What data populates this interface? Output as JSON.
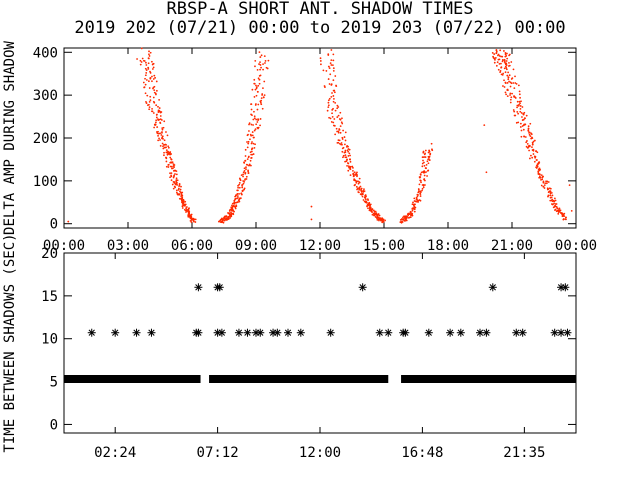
{
  "chart_data": [
    {
      "type": "scatter",
      "title": "RBSP-A SHORT ANT. SHADOW TIMES",
      "subtitle": "2019 202 (07/21) 00:00 to 2019 203 (07/22) 00:00",
      "ylabel": "DELTA AMP DURING SHADOW",
      "xlim": [
        0,
        24
      ],
      "ylim": [
        -10,
        410
      ],
      "x_ticks": [
        "00:00",
        "03:00",
        "06:00",
        "09:00",
        "12:00",
        "15:00",
        "18:00",
        "21:00",
        "00:00"
      ],
      "x_tick_hours": [
        0,
        3,
        6,
        9,
        12,
        15,
        18,
        21,
        24
      ],
      "y_ticks": [
        "0",
        "100",
        "200",
        "300",
        "400"
      ],
      "y_tick_values": [
        0,
        100,
        200,
        300,
        400
      ],
      "color": "#ff2a00",
      "series": [
        {
          "x": [
            3.8,
            4.0,
            4.3,
            4.6,
            4.9,
            5.2,
            5.5,
            5.8,
            6.1
          ],
          "y": [
            400,
            330,
            260,
            200,
            150,
            100,
            60,
            25,
            5
          ]
        },
        {
          "x": [
            7.3,
            7.7,
            8.0,
            8.3,
            8.6,
            8.9,
            9.1,
            9.3
          ],
          "y": [
            5,
            15,
            40,
            80,
            140,
            220,
            300,
            400
          ]
        },
        {
          "x": [
            12.3,
            12.6,
            13.0,
            13.4,
            13.8,
            14.2,
            14.6,
            15.0
          ],
          "y": [
            400,
            280,
            200,
            140,
            90,
            50,
            20,
            5
          ]
        },
        {
          "x": [
            15.8,
            16.2,
            16.6,
            16.9,
            17.1
          ],
          "y": [
            5,
            20,
            60,
            120,
            180
          ]
        },
        {
          "x": [
            20.3,
            20.6,
            20.9,
            21.3,
            21.7,
            22.1,
            22.6,
            23.0,
            23.5
          ],
          "y": [
            400,
            380,
            330,
            270,
            210,
            150,
            90,
            40,
            10
          ]
        },
        {
          "x": [
            0.2,
            11.6,
            11.6,
            19.7,
            19.8,
            23.7,
            23.8
          ],
          "y": [
            5,
            40,
            10,
            230,
            120,
            90,
            30
          ]
        }
      ]
    },
    {
      "type": "scatter",
      "ylabel": "TIME BETWEEN SHADOWS (SEC)",
      "xlim": [
        0,
        24
      ],
      "ylim": [
        -1,
        20
      ],
      "x_ticks": [
        "02:24",
        "07:12",
        "12:00",
        "16:48",
        "21:35"
      ],
      "x_tick_hours": [
        2.4,
        7.2,
        12.0,
        16.8,
        21.58
      ],
      "y_ticks": [
        "0",
        "5",
        "10",
        "15",
        "20"
      ],
      "y_tick_values": [
        0,
        5,
        10,
        15,
        20
      ],
      "color": "#000000",
      "series": [
        {
          "name": "",
          "x": [
            1.3,
            2.4,
            3.4,
            4.1,
            6.2,
            6.3,
            7.2,
            7.4,
            8.2,
            8.6,
            9.0,
            9.2,
            9.8,
            10.0,
            10.5,
            11.1,
            12.5,
            14.8,
            15.2,
            15.9,
            16.0,
            17.1,
            18.1,
            18.6,
            19.5,
            19.8,
            21.2,
            21.5,
            23.0,
            23.3,
            23.6
          ],
          "y": [
            10.7,
            10.7,
            10.7,
            10.7,
            10.7,
            10.7,
            10.7,
            10.7,
            10.7,
            10.7,
            10.7,
            10.7,
            10.7,
            10.7,
            10.7,
            10.7,
            10.7,
            10.7,
            10.7,
            10.7,
            10.7,
            10.7,
            10.7,
            10.7,
            10.7,
            10.7,
            10.7,
            10.7,
            10.7,
            10.7,
            10.7
          ]
        },
        {
          "name": "",
          "x": [
            6.3,
            7.2,
            7.3,
            14.0,
            20.1,
            23.3,
            23.5
          ],
          "y": [
            16.0,
            16.0,
            16.0,
            16.0,
            16.0,
            16.0,
            16.0
          ]
        }
      ],
      "dense_band": {
        "y": 5.3,
        "x_ranges": [
          [
            0.0,
            6.4
          ],
          [
            6.8,
            15.2
          ],
          [
            15.8,
            24.0
          ]
        ]
      }
    }
  ]
}
